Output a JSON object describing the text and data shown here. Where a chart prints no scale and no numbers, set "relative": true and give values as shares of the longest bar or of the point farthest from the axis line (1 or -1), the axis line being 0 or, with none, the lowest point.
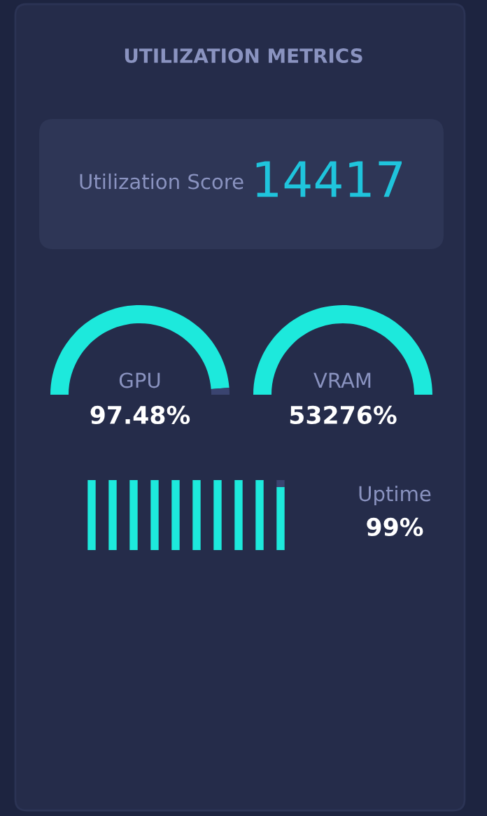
{
  "chart_data": [
    {
      "type": "other",
      "title": "UTILIZATION METRICS",
      "annotations": [
        "Utilization Score",
        "14417"
      ]
    },
    {
      "type": "donut",
      "title": "GPU",
      "categories": [
        null,
        null
      ],
      "values": [
        97.48,
        2.52
      ],
      "colors": [
        "#1de9dc",
        "#3a4470"
      ],
      "annotations": [
        "97.48%"
      ]
    },
    {
      "type": "pie",
      "title": "VRAM",
      "categories": [
        null
      ],
      "values": [
        100
      ],
      "colors": [
        "#1de9dc"
      ],
      "annotations": [
        "53276%"
      ]
    },
    {
      "type": "bar",
      "relative": true,
      "stacked": true,
      "categories": [
        null,
        null,
        null,
        null,
        null,
        null,
        null,
        null,
        null,
        null
      ],
      "series": [
        {
          "color": "#1de9dc",
          "values": [
            1,
            1,
            1,
            1,
            1,
            1,
            1,
            1,
            1,
            0.9
          ]
        },
        {
          "color": "#3a4470",
          "values": [
            0,
            0,
            0,
            0,
            0,
            0,
            0,
            0,
            0,
            0.1
          ]
        }
      ],
      "annotations": [
        "Uptime",
        "99%"
      ]
    }
  ]
}
